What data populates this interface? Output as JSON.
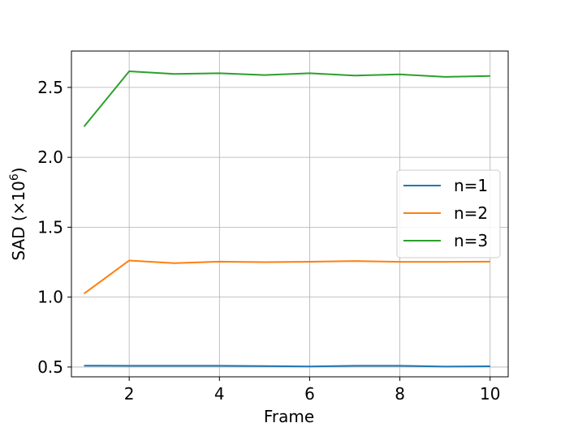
{
  "chart_data": {
    "type": "line",
    "title": "",
    "xlabel": "Frame",
    "ylabel_main": "SAD (×10",
    "ylabel_sup": "6",
    "ylabel_close": ")",
    "xlim": [
      0.72,
      10.4
    ],
    "ylim": [
      0.43,
      2.76
    ],
    "xticks": [
      2,
      4,
      6,
      8,
      10
    ],
    "yticks": [
      0.5,
      1.0,
      1.5,
      2.0,
      2.5
    ],
    "ytick_labels": [
      "0.5",
      "1.0",
      "1.5",
      "2.0",
      "2.5"
    ],
    "grid": true,
    "legend_position": "center-right",
    "x": [
      1,
      2,
      3,
      4,
      5,
      6,
      7,
      8,
      9,
      10
    ],
    "series": [
      {
        "name": "n=1",
        "color": "#1f77b4",
        "values": [
          0.51,
          0.509,
          0.509,
          0.509,
          0.507,
          0.504,
          0.509,
          0.509,
          0.503,
          0.505
        ]
      },
      {
        "name": "n=2",
        "color": "#ff7f0e",
        "values": [
          1.025,
          1.262,
          1.243,
          1.254,
          1.25,
          1.253,
          1.258,
          1.252,
          1.252,
          1.254
        ]
      },
      {
        "name": "n=3",
        "color": "#2ca02c",
        "values": [
          2.22,
          2.615,
          2.596,
          2.601,
          2.588,
          2.601,
          2.585,
          2.593,
          2.575,
          2.582
        ]
      }
    ]
  }
}
